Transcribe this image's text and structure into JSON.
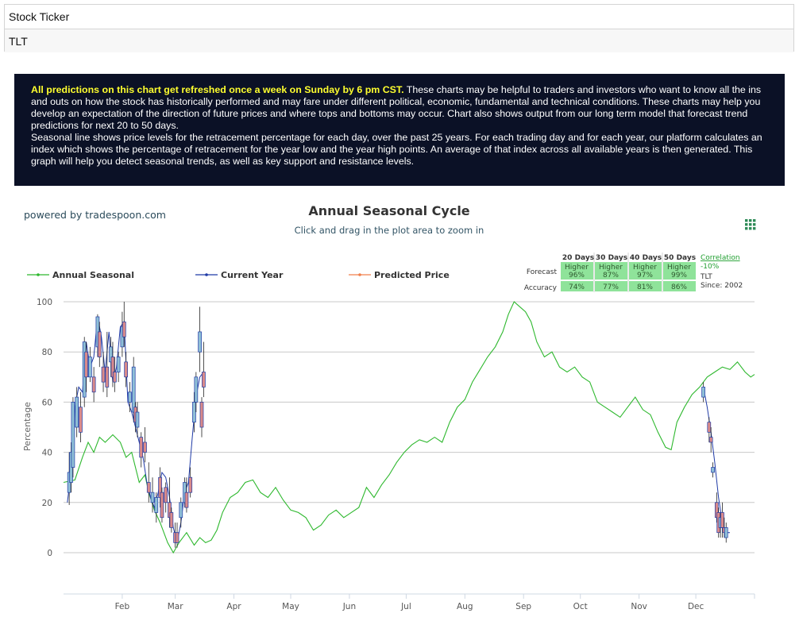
{
  "ticker": {
    "label": "Stock Ticker",
    "value": "TLT"
  },
  "info": {
    "highlight": "All predictions on this chart get refreshed once a week on Sunday by 6 pm CST.",
    "para1": " These charts may be helpful to traders and investors who want to know all the ins and outs on how the stock has historically performed and may fare under different political, economic, fundamental and technical conditions. These charts may help you develop an expectation of the direction of future prices and where tops and bottoms may occur. Chart also shows output from our long term model that forecast trend predictions for next 20 to 50 days.",
    "para2": "Seasonal line shows price levels for the retracement percentage for each day, over the past 25 years. For each trading day and for each year, our platform calculates an index which shows the percentage of retracement for the year low and the year high points. An average of that index across all available years is then generated. This graph will help you detect seasonal trends, as well as key support and resistance levels."
  },
  "chart": {
    "powered_by": "powered by tradespoon.com",
    "menu_icon": "grid-menu-icon",
    "colors": {
      "seasonal": "#2eb82e",
      "current": "#1f3aa6",
      "predicted": "#f07f4a",
      "cell": "#8fe39a",
      "candle_up": "#8fbfd6",
      "candle_down": "#d98a8a"
    }
  },
  "forecast_table": {
    "headers": [
      "20 Days",
      "30 Days",
      "40 Days",
      "50 Days"
    ],
    "forecast_label": "Forecast",
    "accuracy_label": "Accuracy",
    "forecast_dir": [
      "Higher",
      "Higher",
      "Higher",
      "Higher"
    ],
    "forecast_pct": [
      "96%",
      "87%",
      "97%",
      "99%"
    ],
    "accuracy": [
      "74%",
      "77%",
      "81%",
      "86%"
    ],
    "correlation_label": "Correlation",
    "correlation_value": "-10%",
    "symbol": "TLT",
    "since": "Since: 2002"
  },
  "chart_data": {
    "type": "line",
    "title": "Annual Seasonal Cycle",
    "subtitle": "Click and drag in the plot area to zoom in",
    "ylabel": "Percentage",
    "ylim": [
      0,
      100
    ],
    "yticks": [
      0,
      20,
      40,
      60,
      80,
      100
    ],
    "xlim": [
      0,
      365
    ],
    "xticks": [
      {
        "label": "Feb",
        "day": 31
      },
      {
        "label": "Mar",
        "day": 59
      },
      {
        "label": "Apr",
        "day": 90
      },
      {
        "label": "May",
        "day": 120
      },
      {
        "label": "Jun",
        "day": 151
      },
      {
        "label": "Jul",
        "day": 181
      },
      {
        "label": "Aug",
        "day": 212
      },
      {
        "label": "Sep",
        "day": 243
      },
      {
        "label": "Oct",
        "day": 273
      },
      {
        "label": "Nov",
        "day": 304
      },
      {
        "label": "Dec",
        "day": 334
      }
    ],
    "legend_position": "top-left",
    "series": [
      {
        "name": "Annual Seasonal",
        "points": [
          [
            0,
            28
          ],
          [
            6,
            29
          ],
          [
            10,
            38
          ],
          [
            13,
            44
          ],
          [
            16,
            40
          ],
          [
            19,
            46
          ],
          [
            22,
            44
          ],
          [
            26,
            47
          ],
          [
            30,
            44
          ],
          [
            33,
            38
          ],
          [
            36,
            40
          ],
          [
            40,
            28
          ],
          [
            43,
            31
          ],
          [
            45,
            24
          ],
          [
            48,
            17
          ],
          [
            51,
            12
          ],
          [
            55,
            4
          ],
          [
            58,
            0
          ],
          [
            61,
            4
          ],
          [
            65,
            8
          ],
          [
            69,
            3
          ],
          [
            72,
            6
          ],
          [
            75,
            4
          ],
          [
            78,
            5
          ],
          [
            81,
            9
          ],
          [
            84,
            16
          ],
          [
            88,
            22
          ],
          [
            92,
            24
          ],
          [
            96,
            28
          ],
          [
            100,
            29
          ],
          [
            104,
            24
          ],
          [
            108,
            22
          ],
          [
            112,
            26
          ],
          [
            116,
            21
          ],
          [
            120,
            17
          ],
          [
            124,
            16
          ],
          [
            128,
            14
          ],
          [
            132,
            9
          ],
          [
            136,
            11
          ],
          [
            140,
            15
          ],
          [
            144,
            17
          ],
          [
            148,
            14
          ],
          [
            152,
            16
          ],
          [
            156,
            18
          ],
          [
            160,
            26
          ],
          [
            164,
            22
          ],
          [
            168,
            27
          ],
          [
            172,
            31
          ],
          [
            176,
            36
          ],
          [
            180,
            40
          ],
          [
            184,
            43
          ],
          [
            188,
            45
          ],
          [
            192,
            44
          ],
          [
            196,
            46
          ],
          [
            200,
            44
          ],
          [
            204,
            52
          ],
          [
            208,
            58
          ],
          [
            212,
            61
          ],
          [
            216,
            68
          ],
          [
            220,
            73
          ],
          [
            224,
            78
          ],
          [
            228,
            82
          ],
          [
            232,
            88
          ],
          [
            235,
            95
          ],
          [
            238,
            100
          ],
          [
            241,
            98
          ],
          [
            244,
            96
          ],
          [
            247,
            92
          ],
          [
            250,
            84
          ],
          [
            254,
            78
          ],
          [
            258,
            80
          ],
          [
            262,
            74
          ],
          [
            266,
            72
          ],
          [
            270,
            74
          ],
          [
            274,
            70
          ],
          [
            278,
            68
          ],
          [
            282,
            60
          ],
          [
            286,
            58
          ],
          [
            290,
            56
          ],
          [
            294,
            54
          ],
          [
            298,
            58
          ],
          [
            302,
            62
          ],
          [
            306,
            57
          ],
          [
            310,
            55
          ],
          [
            314,
            48
          ],
          [
            318,
            42
          ],
          [
            321,
            41
          ],
          [
            324,
            52
          ],
          [
            328,
            58
          ],
          [
            332,
            63
          ],
          [
            336,
            66
          ],
          [
            340,
            70
          ],
          [
            344,
            72
          ],
          [
            348,
            74
          ],
          [
            352,
            73
          ],
          [
            356,
            76
          ],
          [
            360,
            72
          ],
          [
            363,
            70
          ],
          [
            365,
            71
          ]
        ]
      },
      {
        "name": "Current Year",
        "points": [
          [
            2,
            20
          ],
          [
            4,
            32
          ],
          [
            6,
            58
          ],
          [
            8,
            66
          ],
          [
            10,
            64
          ],
          [
            12,
            84
          ],
          [
            14,
            74
          ],
          [
            16,
            78
          ],
          [
            18,
            94
          ],
          [
            20,
            86
          ],
          [
            22,
            72
          ],
          [
            24,
            88
          ],
          [
            26,
            68
          ],
          [
            28,
            74
          ],
          [
            30,
            90
          ],
          [
            32,
            92
          ],
          [
            34,
            60
          ],
          [
            36,
            56
          ],
          [
            38,
            50
          ],
          [
            40,
            44
          ],
          [
            42,
            38
          ],
          [
            44,
            28
          ],
          [
            46,
            22
          ],
          [
            48,
            18
          ],
          [
            50,
            24
          ],
          [
            52,
            32
          ],
          [
            54,
            30
          ],
          [
            56,
            22
          ],
          [
            58,
            10
          ],
          [
            60,
            4
          ],
          [
            62,
            12
          ],
          [
            64,
            24
          ],
          [
            66,
            28
          ],
          [
            68,
            46
          ],
          [
            70,
            62
          ],
          [
            72,
            70
          ],
          [
            74,
            72
          ],
          [
            338,
            66
          ],
          [
            340,
            58
          ],
          [
            342,
            48
          ],
          [
            344,
            36
          ],
          [
            346,
            22
          ],
          [
            348,
            12
          ],
          [
            350,
            8
          ],
          [
            352,
            8
          ]
        ]
      },
      {
        "name": "Predicted Price",
        "points": []
      }
    ],
    "candles": [
      {
        "d": 3,
        "o": 24,
        "c": 32,
        "h": 40,
        "l": 19
      },
      {
        "d": 4,
        "o": 28,
        "c": 40,
        "h": 44,
        "l": 24
      },
      {
        "d": 5,
        "o": 34,
        "c": 60,
        "h": 62,
        "l": 30
      },
      {
        "d": 7,
        "o": 50,
        "c": 62,
        "h": 66,
        "l": 46
      },
      {
        "d": 9,
        "o": 58,
        "c": 48,
        "h": 64,
        "l": 44
      },
      {
        "d": 11,
        "o": 62,
        "c": 84,
        "h": 86,
        "l": 58
      },
      {
        "d": 12,
        "o": 80,
        "c": 70,
        "h": 84,
        "l": 64
      },
      {
        "d": 14,
        "o": 70,
        "c": 78,
        "h": 82,
        "l": 68
      },
      {
        "d": 16,
        "o": 70,
        "c": 64,
        "h": 74,
        "l": 60
      },
      {
        "d": 18,
        "o": 82,
        "c": 94,
        "h": 95,
        "l": 78
      },
      {
        "d": 19,
        "o": 88,
        "c": 78,
        "h": 92,
        "l": 74
      },
      {
        "d": 21,
        "o": 74,
        "c": 68,
        "h": 80,
        "l": 64
      },
      {
        "d": 23,
        "o": 74,
        "c": 66,
        "h": 88,
        "l": 62
      },
      {
        "d": 25,
        "o": 76,
        "c": 82,
        "h": 86,
        "l": 70
      },
      {
        "d": 26,
        "o": 78,
        "c": 70,
        "h": 84,
        "l": 66
      },
      {
        "d": 27,
        "o": 72,
        "c": 68,
        "h": 78,
        "l": 64
      },
      {
        "d": 29,
        "o": 72,
        "c": 78,
        "h": 80,
        "l": 68
      },
      {
        "d": 31,
        "o": 82,
        "c": 90,
        "h": 96,
        "l": 78
      },
      {
        "d": 32,
        "o": 92,
        "c": 86,
        "h": 100,
        "l": 82
      },
      {
        "d": 33,
        "o": 76,
        "c": 70,
        "h": 80,
        "l": 66
      },
      {
        "d": 35,
        "o": 60,
        "c": 64,
        "h": 68,
        "l": 56
      },
      {
        "d": 37,
        "o": 56,
        "c": 74,
        "h": 78,
        "l": 52
      },
      {
        "d": 38,
        "o": 58,
        "c": 52,
        "h": 60,
        "l": 48
      },
      {
        "d": 39,
        "o": 50,
        "c": 56,
        "h": 60,
        "l": 46
      },
      {
        "d": 41,
        "o": 46,
        "c": 38,
        "h": 48,
        "l": 34
      },
      {
        "d": 43,
        "o": 44,
        "c": 40,
        "h": 50,
        "l": 36
      },
      {
        "d": 45,
        "o": 28,
        "c": 24,
        "h": 36,
        "l": 20
      },
      {
        "d": 47,
        "o": 20,
        "c": 24,
        "h": 30,
        "l": 16
      },
      {
        "d": 49,
        "o": 16,
        "c": 22,
        "h": 24,
        "l": 12
      },
      {
        "d": 51,
        "o": 30,
        "c": 22,
        "h": 34,
        "l": 18
      },
      {
        "d": 52,
        "o": 24,
        "c": 14,
        "h": 26,
        "l": 12
      },
      {
        "d": 54,
        "o": 26,
        "c": 20,
        "h": 28,
        "l": 16
      },
      {
        "d": 56,
        "o": 20,
        "c": 14,
        "h": 30,
        "l": 10
      },
      {
        "d": 57,
        "o": 16,
        "c": 10,
        "h": 18,
        "l": 8
      },
      {
        "d": 59,
        "o": 8,
        "c": 4,
        "h": 12,
        "l": 2
      },
      {
        "d": 60,
        "o": 8,
        "c": 4,
        "h": 12,
        "l": 2
      },
      {
        "d": 62,
        "o": 14,
        "c": 20,
        "h": 22,
        "l": 10
      },
      {
        "d": 64,
        "o": 20,
        "c": 28,
        "h": 30,
        "l": 18
      },
      {
        "d": 65,
        "o": 24,
        "c": 18,
        "h": 30,
        "l": 16
      },
      {
        "d": 67,
        "o": 30,
        "c": 24,
        "h": 34,
        "l": 22
      },
      {
        "d": 69,
        "o": 52,
        "c": 60,
        "h": 64,
        "l": 48
      },
      {
        "d": 70,
        "o": 60,
        "c": 70,
        "h": 72,
        "l": 56
      },
      {
        "d": 72,
        "o": 80,
        "c": 88,
        "h": 98,
        "l": 72
      },
      {
        "d": 73,
        "o": 60,
        "c": 50,
        "h": 62,
        "l": 46
      },
      {
        "d": 74,
        "o": 72,
        "c": 66,
        "h": 84,
        "l": 62
      },
      {
        "d": 338,
        "o": 62,
        "c": 66,
        "h": 68,
        "l": 60
      },
      {
        "d": 341,
        "o": 52,
        "c": 48,
        "h": 54,
        "l": 44
      },
      {
        "d": 342,
        "o": 46,
        "c": 44,
        "h": 50,
        "l": 40
      },
      {
        "d": 343,
        "o": 32,
        "c": 34,
        "h": 36,
        "l": 30
      },
      {
        "d": 345,
        "o": 20,
        "c": 14,
        "h": 24,
        "l": 12
      },
      {
        "d": 346,
        "o": 16,
        "c": 8,
        "h": 18,
        "l": 6
      },
      {
        "d": 347,
        "o": 10,
        "c": 14,
        "h": 16,
        "l": 6
      },
      {
        "d": 348,
        "o": 16,
        "c": 10,
        "h": 20,
        "l": 6
      },
      {
        "d": 349,
        "o": 10,
        "c": 8,
        "h": 14,
        "l": 6
      },
      {
        "d": 350,
        "o": 6,
        "c": 10,
        "h": 12,
        "l": 4
      }
    ]
  }
}
